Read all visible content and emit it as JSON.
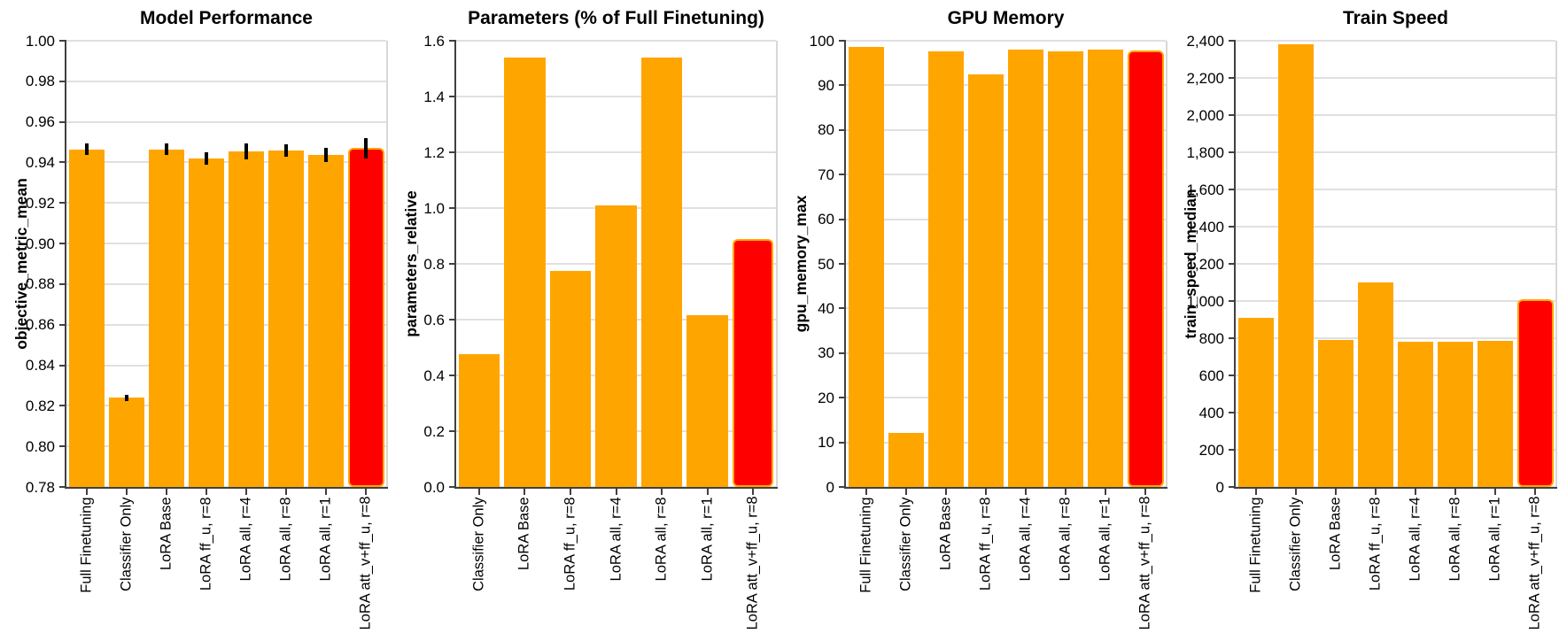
{
  "figure": {
    "background": "#ffffff",
    "categories_full": [
      "Full Finetuning",
      "Classifier Only",
      "LoRA Base",
      "LoRA ff_u, r=8",
      "LoRA all, r=4",
      "LoRA all, r=8",
      "LoRA all, r=1",
      "LoRA att_v+ff_u, r=8"
    ],
    "highlight_category": "LoRA att_v+ff_u, r=8"
  },
  "colors": {
    "bar": "#FFA500",
    "highlight_fill": "#FF0000",
    "highlight_border": "#FFA500",
    "error_bar": "#000000",
    "grid": "#E0E0E0",
    "axis": "#404040",
    "panel_border": "#D8D8D8",
    "text": "#000000"
  },
  "chart_data": [
    {
      "type": "bar",
      "title": "Model Performance",
      "xlabel": "",
      "ylabel": "objective_metric_mean",
      "categories": [
        "Full Finetuning",
        "Classifier Only",
        "LoRA Base",
        "LoRA ff_u, r=8",
        "LoRA all, r=4",
        "LoRA all, r=8",
        "LoRA all, r=1",
        "LoRA att_v+ff_u, r=8"
      ],
      "values": [
        0.9465,
        0.824,
        0.9465,
        0.942,
        0.9455,
        0.946,
        0.9435,
        0.947
      ],
      "errors": [
        0.003,
        0.0015,
        0.003,
        0.003,
        0.004,
        0.003,
        0.0035,
        0.005
      ],
      "ylim": [
        0.78,
        1.0
      ],
      "ytick_values": [
        0.78,
        0.8,
        0.82,
        0.84,
        0.86,
        0.88,
        0.9,
        0.92,
        0.94,
        0.96,
        0.98,
        1.0
      ],
      "ytick_labels": [
        "0.78",
        "0.80",
        "0.82",
        "0.84",
        "0.86",
        "0.88",
        "0.90",
        "0.92",
        "0.94",
        "0.96",
        "0.98",
        "1.00"
      ],
      "highlight_index": 7,
      "grid": true,
      "legend": "none"
    },
    {
      "type": "bar",
      "title": "Parameters (% of Full Finetuning)",
      "xlabel": "",
      "ylabel": "parameters_relative",
      "categories": [
        "Classifier Only",
        "LoRA Base",
        "LoRA ff_u, r=8",
        "LoRA all, r=4",
        "LoRA all, r=8",
        "LoRA all, r=1",
        "LoRA att_v+ff_u, r=8"
      ],
      "values": [
        0.475,
        1.54,
        0.775,
        1.01,
        1.54,
        0.615,
        0.89
      ],
      "errors": [],
      "ylim": [
        0,
        1.6
      ],
      "ytick_values": [
        0,
        0.2,
        0.4,
        0.6,
        0.8,
        1.0,
        1.2,
        1.4,
        1.6
      ],
      "ytick_labels": [
        "0.0",
        "0.2",
        "0.4",
        "0.6",
        "0.8",
        "1.0",
        "1.2",
        "1.4",
        "1.6"
      ],
      "highlight_index": 6,
      "grid": true,
      "legend": "none"
    },
    {
      "type": "bar",
      "title": "GPU Memory",
      "xlabel": "",
      "ylabel": "gpu_memory_max",
      "categories": [
        "Full Finetuning",
        "Classifier Only",
        "LoRA Base",
        "LoRA ff_u, r=8",
        "LoRA all, r=4",
        "LoRA all, r=8",
        "LoRA all, r=1",
        "LoRA att_v+ff_u, r=8"
      ],
      "values": [
        98.7,
        12.2,
        97.6,
        92.4,
        98.0,
        97.7,
        98.0,
        97.8
      ],
      "errors": [],
      "ylim": [
        0,
        100
      ],
      "ytick_values": [
        0,
        10,
        20,
        30,
        40,
        50,
        60,
        70,
        80,
        90,
        100
      ],
      "ytick_labels": [
        "0",
        "10",
        "20",
        "30",
        "40",
        "50",
        "60",
        "70",
        "80",
        "90",
        "100"
      ],
      "highlight_index": 7,
      "grid": true,
      "legend": "none"
    },
    {
      "type": "bar",
      "title": "Train Speed",
      "xlabel": "",
      "ylabel": "train_speed_median",
      "categories": [
        "Full Finetuning",
        "Classifier Only",
        "LoRA Base",
        "LoRA ff_u, r=8",
        "LoRA all, r=4",
        "LoRA all, r=8",
        "LoRA all, r=1",
        "LoRA att_v+ff_u, r=8"
      ],
      "values": [
        910,
        2380,
        790,
        1100,
        780,
        780,
        785,
        1010
      ],
      "errors": [],
      "ylim": [
        0,
        2400
      ],
      "ytick_values": [
        0,
        200,
        400,
        600,
        800,
        1000,
        1200,
        1400,
        1600,
        1800,
        2000,
        2200,
        2400
      ],
      "ytick_labels": [
        "0",
        "200",
        "400",
        "600",
        "800",
        "1,000",
        "1,200",
        "1,400",
        "1,600",
        "1,800",
        "2,000",
        "2,200",
        "2,400"
      ],
      "highlight_index": 7,
      "grid": true,
      "legend": "none"
    }
  ]
}
